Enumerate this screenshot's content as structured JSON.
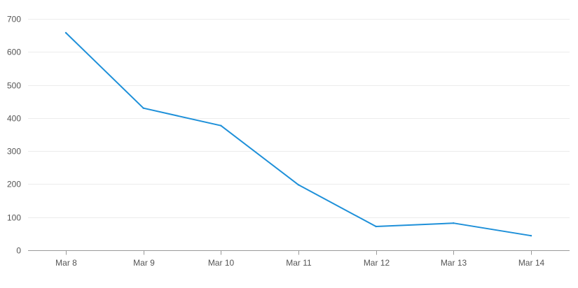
{
  "chart_data": {
    "type": "line",
    "title": "",
    "xlabel": "",
    "ylabel": "",
    "categories": [
      "Mar 8",
      "Mar 9",
      "Mar 10",
      "Mar 11",
      "Mar 12",
      "Mar 13",
      "Mar 14"
    ],
    "series": [
      {
        "values": [
          658,
          430,
          377,
          198,
          72,
          82,
          44
        ]
      }
    ],
    "y_ticks": [
      0,
      100,
      200,
      300,
      400,
      500,
      600,
      700
    ],
    "ylim": [
      0,
      700
    ],
    "grid": true,
    "legend": "none",
    "colors": {
      "line": "#1e90d9",
      "grid": "#ececec",
      "axis": "#999999"
    }
  }
}
